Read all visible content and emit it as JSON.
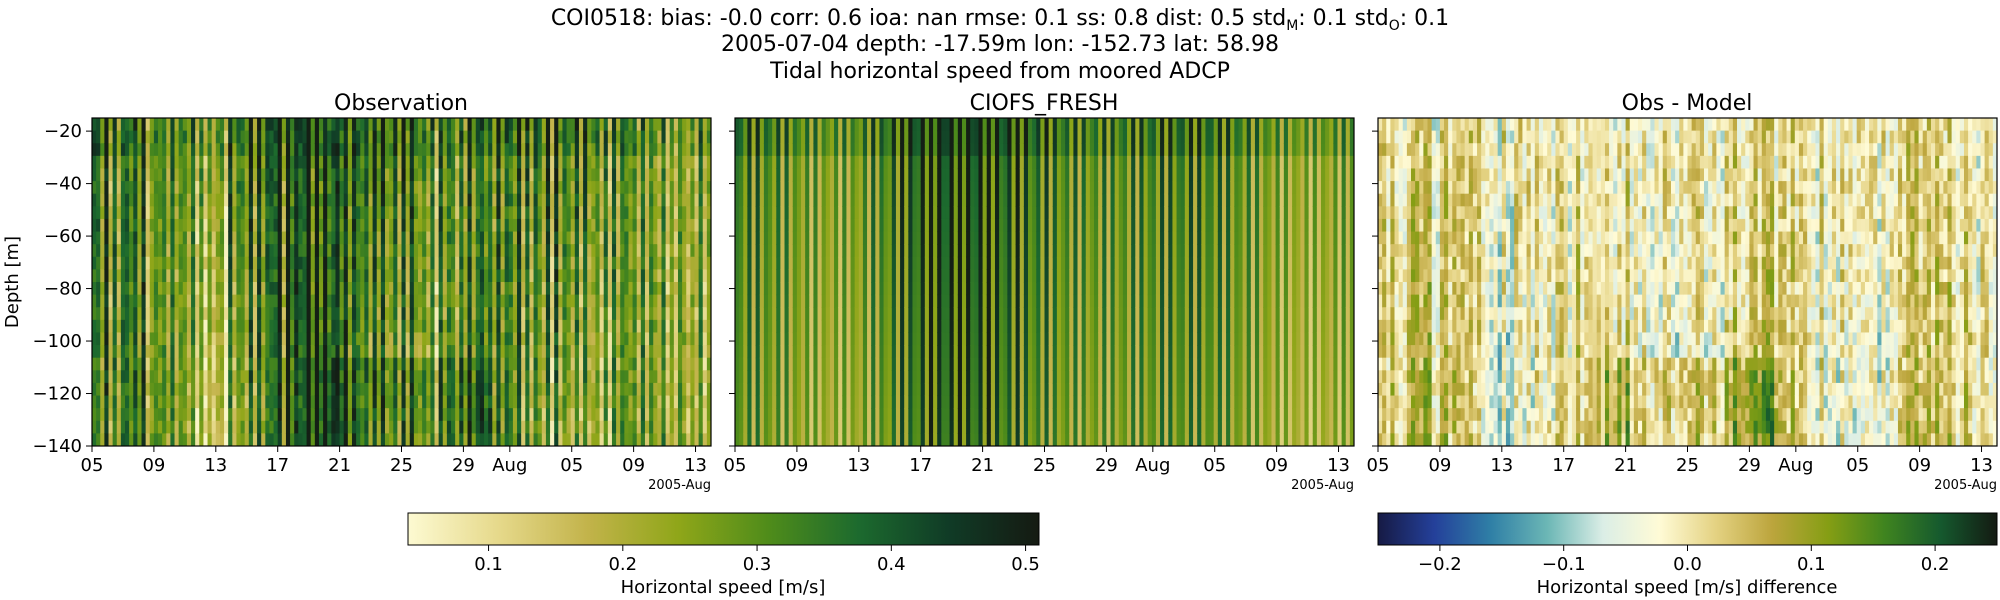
{
  "figure": {
    "suptitle_line1_parts": [
      "COI0518: bias: -0.0  corr: 0.6  ioa: nan  rmse: 0.1  ss: 0.8  dist: 0.5  std",
      "M",
      ": 0.1  std",
      "O",
      ": 0.1"
    ],
    "suptitle_line2": "2005-07-04 depth: -17.59m lon: -152.73 lat: 58.98",
    "suptitle_line3": "Tidal horizontal speed from moored ADCP"
  },
  "chart_data": [
    {
      "type": "heatmap",
      "title": "Observation",
      "ylabel": "Depth [m]",
      "x_ticks": [
        "05",
        "09",
        "13",
        "17",
        "21",
        "25",
        "29",
        "Aug",
        "05",
        "09",
        "13"
      ],
      "x_offset_label": "2005-Aug",
      "x_range": [
        "2005-07-05",
        "2005-08-14"
      ],
      "y_ticks": [
        -20,
        -40,
        -60,
        -80,
        -100,
        -120,
        -140
      ],
      "ylim": [
        -140,
        -15
      ],
      "colormap": "speed",
      "value_range": [
        0.04,
        0.51
      ]
    },
    {
      "type": "heatmap",
      "title": "CIOFS_FRESH",
      "x_ticks": [
        "05",
        "09",
        "13",
        "17",
        "21",
        "25",
        "29",
        "Aug",
        "05",
        "09",
        "13"
      ],
      "x_offset_label": "2005-Aug",
      "x_range": [
        "2005-07-05",
        "2005-08-14"
      ],
      "y_ticks": [
        -20,
        -40,
        -60,
        -80,
        -100,
        -120,
        -140
      ],
      "ylim": [
        -140,
        -15
      ],
      "colormap": "speed",
      "value_range": [
        0.04,
        0.51
      ]
    },
    {
      "type": "heatmap",
      "title": "Obs - Model",
      "x_ticks": [
        "05",
        "09",
        "13",
        "17",
        "21",
        "25",
        "29",
        "Aug",
        "05",
        "09",
        "13"
      ],
      "x_offset_label": "2005-Aug",
      "x_range": [
        "2005-07-05",
        "2005-08-14"
      ],
      "y_ticks": [
        -20,
        -40,
        -60,
        -80,
        -100,
        -120,
        -140
      ],
      "ylim": [
        -140,
        -15
      ],
      "colormap": "diverging",
      "value_range": [
        -0.25,
        0.25
      ]
    }
  ],
  "colorbars": [
    {
      "label": "Horizontal speed [m/s]",
      "ticks": [
        0.1,
        0.2,
        0.3,
        0.4,
        0.5
      ],
      "tick_labels": [
        "0.1",
        "0.2",
        "0.3",
        "0.4",
        "0.5"
      ],
      "range": [
        0.04,
        0.51
      ],
      "colors": [
        "#fdfad2",
        "#e6d98b",
        "#c2b34a",
        "#8fa619",
        "#4f8c1a",
        "#1c6a2e",
        "#103b26",
        "#151a12"
      ]
    },
    {
      "label": "Horizontal speed [m/s] difference",
      "ticks": [
        -0.2,
        -0.1,
        0.0,
        0.1,
        0.2
      ],
      "tick_labels": [
        "−0.2",
        "−0.1",
        "0.0",
        "0.1",
        "0.2"
      ],
      "range": [
        -0.25,
        0.25
      ],
      "colors": [
        "#161a44",
        "#24409a",
        "#2f7fa6",
        "#6bb6b5",
        "#dbeee6",
        "#fffbd6",
        "#e4d282",
        "#bca53d",
        "#859e14",
        "#3f841f",
        "#15592e",
        "#141a12"
      ]
    }
  ]
}
